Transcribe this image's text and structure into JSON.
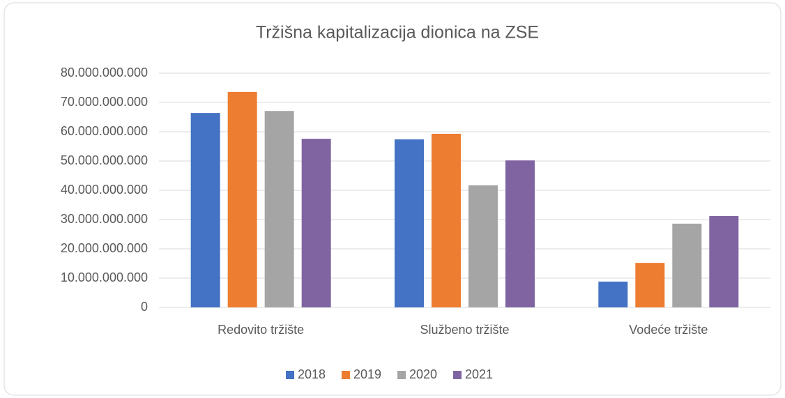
{
  "chart_data": {
    "type": "bar",
    "title": "Tržišna kapitalizacija dionica na ZSE",
    "categories": [
      "Redovito tržište",
      "Službeno tržište",
      "Vodeće tržište"
    ],
    "series": [
      {
        "name": "2018",
        "color": "#4472c4",
        "values": [
          66400000000,
          57400000000,
          8800000000
        ]
      },
      {
        "name": "2019",
        "color": "#ed7d31",
        "values": [
          73600000000,
          59300000000,
          15200000000
        ]
      },
      {
        "name": "2020",
        "color": "#a5a5a5",
        "values": [
          67100000000,
          41700000000,
          28600000000
        ]
      },
      {
        "name": "2021",
        "color": "#8064a2",
        "values": [
          57600000000,
          50200000000,
          31200000000
        ]
      }
    ],
    "ylim": [
      0,
      80000000000
    ],
    "yticks": [
      0,
      {
        "value": 10000000000,
        "label": "10.000.000.000"
      },
      {
        "value": 20000000000,
        "label": "20.000.000.000"
      },
      {
        "value": 30000000000,
        "label": "30.000.000.000"
      },
      {
        "value": 40000000000,
        "label": "40.000.000.000"
      },
      {
        "value": 50000000000,
        "label": "50.000.000.000"
      },
      {
        "value": 60000000000,
        "label": "60.000.000.000"
      },
      {
        "value": 70000000000,
        "label": "70.000.000.000"
      },
      {
        "value": 80000000000,
        "label": "80.000.000.000"
      }
    ],
    "grid": true,
    "legend": "bottom"
  }
}
